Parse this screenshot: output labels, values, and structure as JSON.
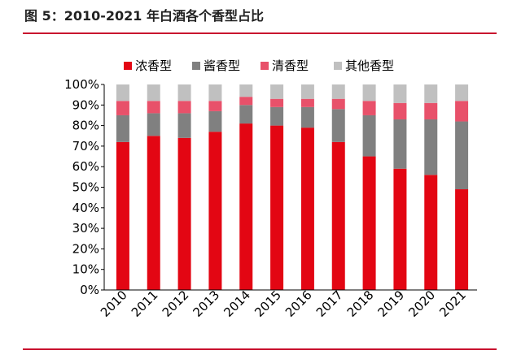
{
  "title": "图 5：2010-2021 年白酒各个香型占比",
  "chart_data": {
    "type": "bar",
    "stacked": true,
    "categories": [
      "2010",
      "2011",
      "2012",
      "2013",
      "2014",
      "2015",
      "2016",
      "2017",
      "2018",
      "2019",
      "2020",
      "2021"
    ],
    "series": [
      {
        "name": "浓香型",
        "color": "#e30613",
        "values": [
          72,
          75,
          74,
          77,
          81,
          80,
          79,
          72,
          65,
          59,
          56,
          49
        ]
      },
      {
        "name": "酱香型",
        "color": "#808080",
        "values": [
          13,
          11,
          12,
          10,
          9,
          9,
          10,
          16,
          20,
          24,
          27,
          33
        ]
      },
      {
        "name": "清香型",
        "color": "#e8516a",
        "values": [
          7,
          6,
          6,
          5,
          4,
          4,
          4,
          5,
          7,
          8,
          8,
          10
        ]
      },
      {
        "name": "其他香型",
        "color": "#c0c0c0",
        "values": [
          8,
          8,
          8,
          8,
          6,
          7,
          7,
          7,
          8,
          9,
          9,
          8
        ]
      }
    ],
    "yticks": [
      "0%",
      "10%",
      "20%",
      "30%",
      "40%",
      "50%",
      "60%",
      "70%",
      "80%",
      "90%",
      "100%"
    ],
    "ylim": [
      0,
      100
    ],
    "legend_position": "top"
  }
}
